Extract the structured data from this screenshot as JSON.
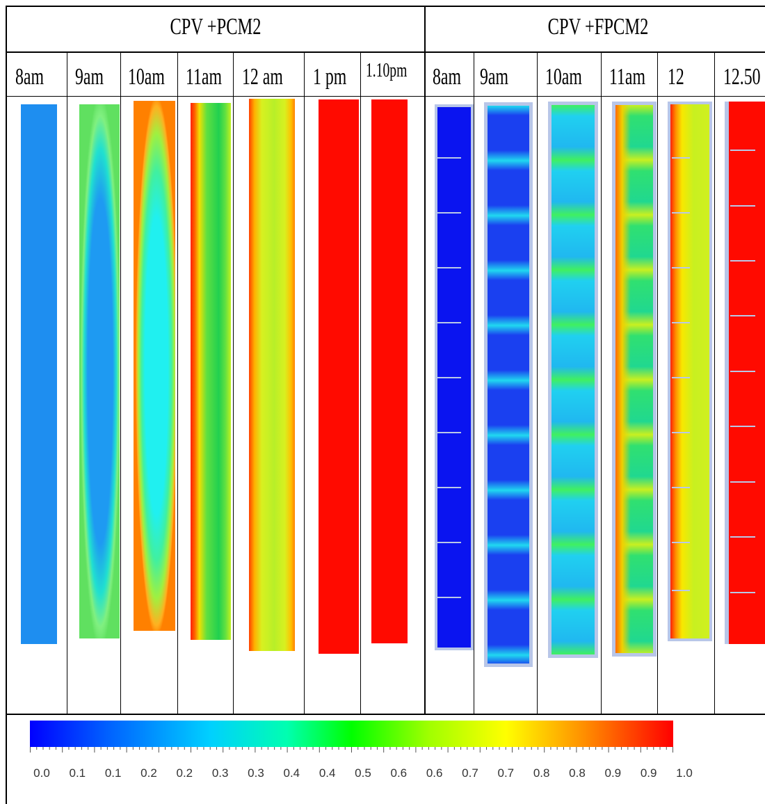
{
  "groups": [
    {
      "title": "CPV +PCM2"
    },
    {
      "title": "CPV +FPCM2"
    }
  ],
  "times_pcm2": [
    "8am",
    "9am",
    "10am",
    "11am",
    "12 am",
    "1 pm",
    "1.10pm"
  ],
  "times_fpcm2": [
    "8am",
    "9am",
    "10am",
    "11am",
    "12",
    "12.50"
  ],
  "colorbar": {
    "ticks": [
      "0.0",
      "0.1",
      "0.1",
      "0.2",
      "0.2",
      "0.3",
      "0.3",
      "0.4",
      "0.4",
      "0.5",
      "0.6",
      "0.6",
      "0.7",
      "0.7",
      "0.8",
      "0.8",
      "0.9",
      "0.9",
      "1.0"
    ],
    "range": [
      0.0,
      1.0
    ],
    "colors": [
      "#0000ff",
      "#00ffff",
      "#00ff00",
      "#ffff00",
      "#ff0000"
    ]
  }
}
